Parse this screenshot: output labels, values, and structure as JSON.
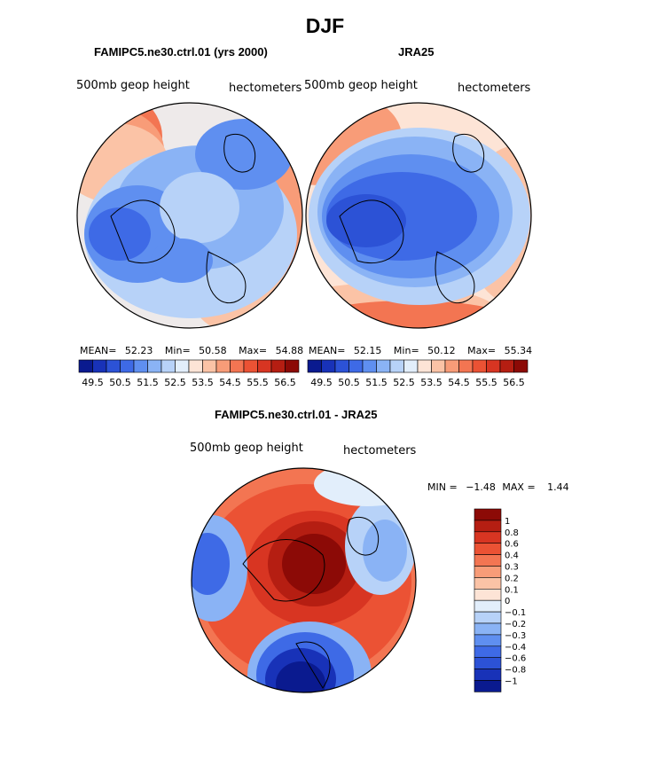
{
  "colors": {
    "bar_top": [
      "#0a1a8f",
      "#1832b8",
      "#2c52d6",
      "#3e6ae6",
      "#5f8ff0",
      "#8ab3f5",
      "#b7d2f8",
      "#e2eefb",
      "#fde4d6",
      "#fbc3a6",
      "#f89c78",
      "#f37552",
      "#eb5234",
      "#d83522",
      "#b51e12",
      "#8c0a06"
    ],
    "bar_diff": [
      "#8c0a06",
      "#b51e12",
      "#d83522",
      "#eb5234",
      "#f37552",
      "#f89c78",
      "#fbc3a6",
      "#fde4d6",
      "#e2eefb",
      "#b7d2f8",
      "#8ab3f5",
      "#5f8ff0",
      "#3e6ae6",
      "#2c52d6",
      "#1832b8",
      "#0a1a8f"
    ]
  },
  "chart_data": [
    {
      "type": "heatmap",
      "figure_title": "DJF",
      "title": "FAMIPC5.ne30.ctrl.01 (yrs 2000)",
      "field_label": "500mb geop height",
      "units_label": "hectometers",
      "stats": {
        "mean_label": "MEAN=",
        "mean": "52.23",
        "min_label": "Min=",
        "min": "50.58",
        "max_label": "Max=",
        "max": "54.88"
      },
      "colorbar_ticks": [
        "49.5",
        "50.5",
        "51.5",
        "52.5",
        "53.5",
        "54.5",
        "55.5",
        "56.5"
      ],
      "mean": 52.23,
      "min": 50.58,
      "max": 54.88
    },
    {
      "type": "heatmap",
      "title": "JRA25",
      "field_label": "500mb geop height",
      "units_label": "hectometers",
      "stats": {
        "mean_label": "MEAN=",
        "mean": "52.15",
        "min_label": "Min=",
        "min": "50.12",
        "max_label": "Max=",
        "max": "55.34"
      },
      "colorbar_ticks": [
        "49.5",
        "50.5",
        "51.5",
        "52.5",
        "53.5",
        "54.5",
        "55.5",
        "56.5"
      ],
      "mean": 52.15,
      "min": 50.12,
      "max": 55.34
    },
    {
      "type": "heatmap",
      "title": "FAMIPC5.ne30.ctrl.01 - JRA25",
      "field_label": "500mb geop height",
      "units_label": "hectometers",
      "stats": {
        "min_label": "MIN =",
        "min": "−1.48",
        "max_label": "MAX =",
        "max": "1.44"
      },
      "colorbar_ticks": [
        "1",
        "0.8",
        "0.6",
        "0.4",
        "0.3",
        "0.2",
        "0.1",
        "0",
        "−0.1",
        "−0.2",
        "−0.3",
        "−0.4",
        "−0.6",
        "−0.8",
        "−1"
      ],
      "min": -1.48,
      "max": 1.44
    }
  ]
}
